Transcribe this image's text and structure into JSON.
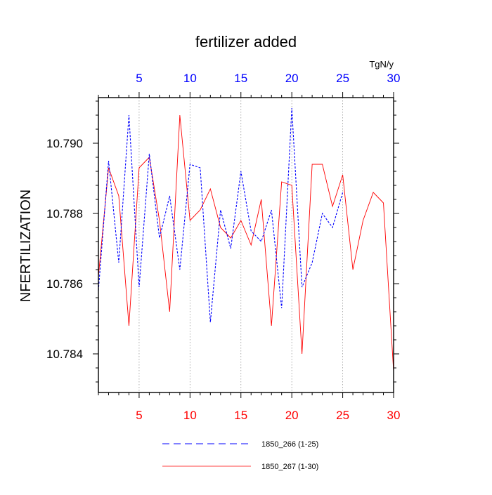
{
  "chart_data": {
    "type": "line",
    "title": "fertilizer added",
    "ylabel": "NFERTILIZATION",
    "top_axis_unit": "TgN/y",
    "xlim": [
      1,
      30
    ],
    "ylim": [
      10.7829,
      10.7913
    ],
    "x_ticks_bottom": [
      5,
      10,
      15,
      20,
      25,
      30
    ],
    "x_ticks_top": [
      5,
      10,
      15,
      20,
      25,
      30
    ],
    "y_ticks": [
      10.784,
      10.786,
      10.788,
      10.79
    ],
    "y_tick_labels": [
      "10.784",
      "10.786",
      "10.788",
      "10.790"
    ],
    "grid": "vertical-dotted",
    "legend_position": "bottom",
    "colors": {
      "bottom_axis": "#ff0000",
      "top_axis": "#0000ff"
    },
    "series": [
      {
        "name": "1850_266 (1-25)",
        "color": "#0000ff",
        "dash": "dashed",
        "x": [
          1,
          2,
          3,
          4,
          5,
          6,
          7,
          8,
          9,
          10,
          11,
          12,
          13,
          14,
          15,
          16,
          17,
          18,
          19,
          20,
          21,
          22,
          23,
          24,
          25
        ],
        "values": [
          10.7858,
          10.7895,
          10.7866,
          10.7908,
          10.7859,
          10.7897,
          10.7873,
          10.7885,
          10.7864,
          10.7894,
          10.7893,
          10.7849,
          10.7881,
          10.787,
          10.7892,
          10.7875,
          10.7872,
          10.7881,
          10.7853,
          10.791,
          10.7859,
          10.7866,
          10.788,
          10.7876,
          10.7886
        ]
      },
      {
        "name": "1850_267 (1-30)",
        "color": "#ff0000",
        "dash": "solid",
        "x": [
          1,
          2,
          3,
          4,
          5,
          6,
          7,
          8,
          9,
          10,
          11,
          12,
          13,
          14,
          15,
          16,
          17,
          18,
          19,
          20,
          21,
          22,
          23,
          24,
          25,
          26,
          27,
          28,
          29,
          30
        ],
        "values": [
          10.7862,
          10.7893,
          10.7885,
          10.7848,
          10.7893,
          10.7896,
          10.7878,
          10.7852,
          10.7908,
          10.7878,
          10.7881,
          10.7887,
          10.7876,
          10.7873,
          10.7878,
          10.7871,
          10.7884,
          10.7848,
          10.7889,
          10.7888,
          10.784,
          10.7894,
          10.7894,
          10.7882,
          10.7891,
          10.7864,
          10.7878,
          10.7886,
          10.7883,
          10.7835
        ]
      }
    ]
  }
}
